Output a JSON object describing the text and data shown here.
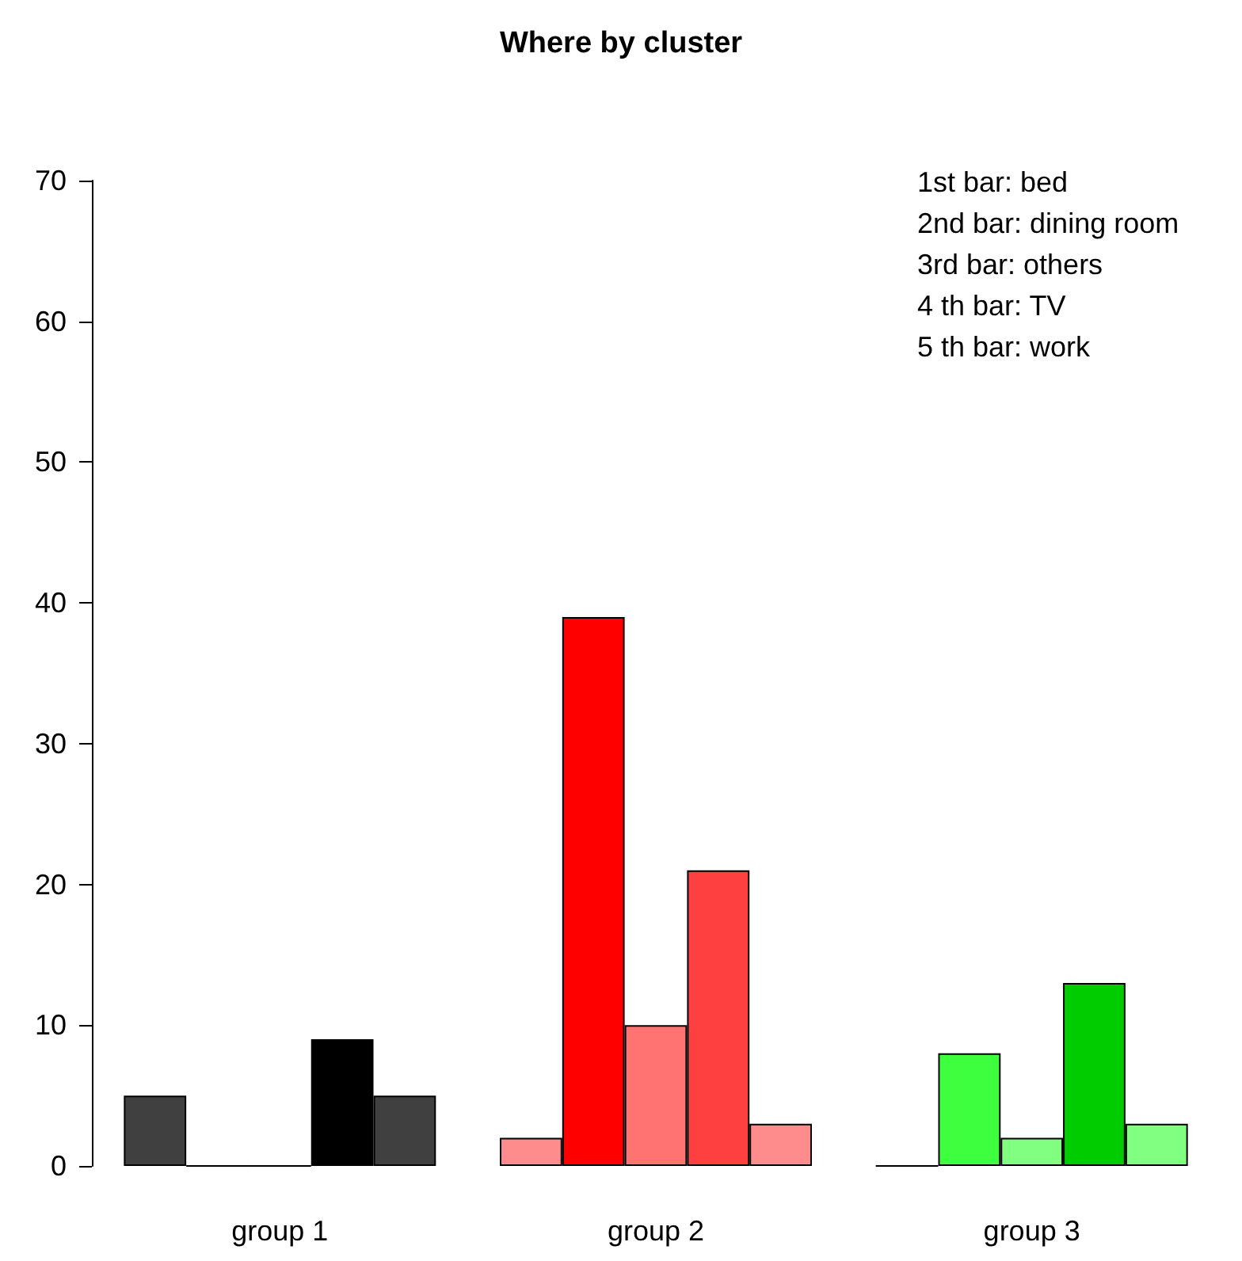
{
  "chart_data": {
    "type": "bar",
    "title": "Where by cluster",
    "categories": [
      "group 1",
      "group 2",
      "group 3"
    ],
    "series": [
      {
        "colors": [
          "#404040",
          "#ff8c8c",
          "#000000"
        ],
        "values": [
          5,
          2,
          0
        ]
      },
      {
        "colors": [
          "#000000",
          "#ff0000",
          "#3dff3d"
        ],
        "values": [
          0,
          39,
          8
        ]
      },
      {
        "colors": [
          "#000000",
          "#ff7373",
          "#80ff80"
        ],
        "values": [
          0,
          10,
          2
        ]
      },
      {
        "colors": [
          "#000000",
          "#ff4040",
          "#00cc00"
        ],
        "values": [
          9,
          21,
          13
        ]
      },
      {
        "colors": [
          "#404040",
          "#ff8c8c",
          "#80ff80"
        ],
        "values": [
          5,
          3,
          3
        ]
      }
    ],
    "annotations": [
      "1st bar: bed",
      "2nd bar: dining room",
      "3rd bar: others",
      "4 th bar: TV",
      "5 th bar: work"
    ],
    "ylim": [
      0,
      70
    ],
    "yticks": [
      0,
      10,
      20,
      30,
      40,
      50,
      60,
      70
    ],
    "grid": false
  }
}
